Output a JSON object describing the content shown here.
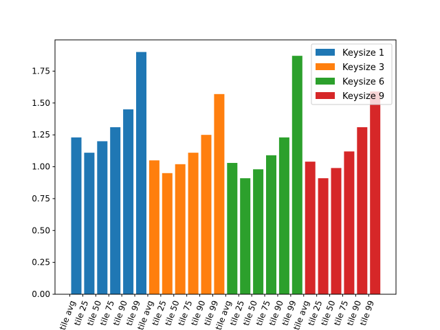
{
  "chart_data": {
    "type": "bar",
    "title": "",
    "xlabel": "",
    "ylabel": "",
    "ylim": [
      0,
      1.995
    ],
    "yticks": [
      "0.00",
      "0.25",
      "0.50",
      "0.75",
      "1.00",
      "1.25",
      "1.50",
      "1.75"
    ],
    "ytick_values": [
      0,
      0.25,
      0.5,
      0.75,
      1.0,
      1.25,
      1.5,
      1.75
    ],
    "grid": false,
    "legend_position": "top-right",
    "tick_labels": [
      "tile avg",
      "tile 25",
      "tile 50",
      "tile 75",
      "tile 90",
      "tile 99",
      "tile avg",
      "tile 25",
      "tile 50",
      "tile 75",
      "tile 90",
      "tile 99",
      "tile avg",
      "tile 25",
      "tile 50",
      "tile 75",
      "tile 90",
      "tile 99",
      "tile avg",
      "tile 25",
      "tile 50",
      "tile 75",
      "tile 90",
      "tile 99"
    ],
    "series": [
      {
        "name": "Keysize 1",
        "color": "#1f77b4",
        "values": [
          1.23,
          1.11,
          1.2,
          1.31,
          1.45,
          1.9
        ]
      },
      {
        "name": "Keysize 3",
        "color": "#ff7f0e",
        "values": [
          1.05,
          0.95,
          1.02,
          1.11,
          1.25,
          1.57
        ]
      },
      {
        "name": "Keysize 6",
        "color": "#2ca02c",
        "values": [
          1.03,
          0.91,
          0.98,
          1.09,
          1.23,
          1.87
        ]
      },
      {
        "name": "Keysize 9",
        "color": "#d62728",
        "values": [
          1.04,
          0.91,
          0.99,
          1.12,
          1.31,
          1.59
        ]
      }
    ]
  }
}
